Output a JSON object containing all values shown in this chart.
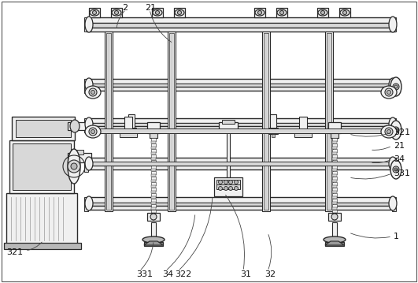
{
  "bg_color": "#ffffff",
  "lc": "#2a2a2a",
  "fc_light": "#f0f0f0",
  "fc_mid": "#d8d8d8",
  "fc_dark": "#b8b8b8",
  "figsize": [
    5.31,
    3.59
  ],
  "dpi": 100
}
